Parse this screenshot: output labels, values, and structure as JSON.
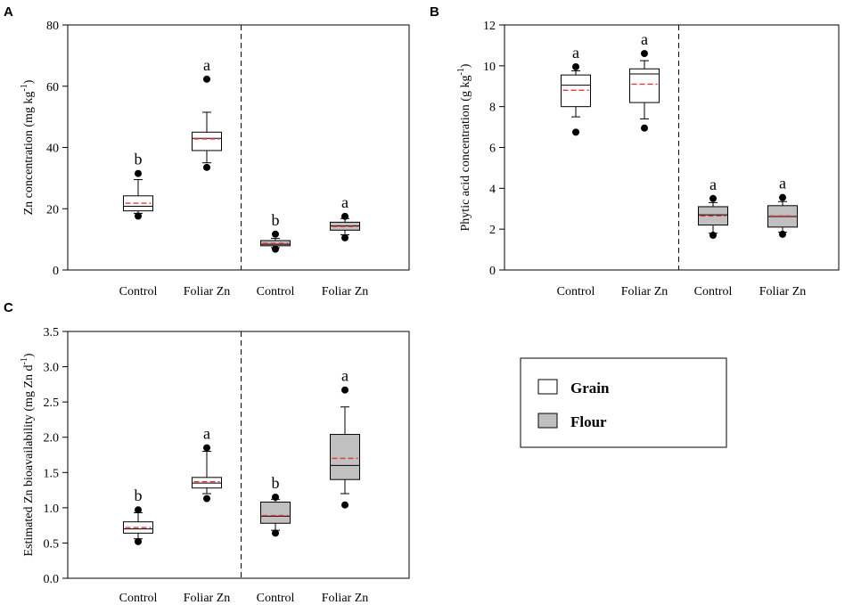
{
  "legend": {
    "items": [
      {
        "label": "Grain",
        "color": "#ffffff"
      },
      {
        "label": "Flour",
        "color": "#c0c0c0"
      }
    ]
  },
  "chart_data": [
    {
      "type": "box",
      "panel": "A",
      "ylabel": "Zn concentration (mg kg",
      "ylabel_sup": "-1",
      "ylabel_close": ")",
      "ylim": [
        0,
        80
      ],
      "yticks": [
        0,
        20,
        40,
        60,
        80
      ],
      "ytick_labels": [
        "0",
        "20",
        "40",
        "60",
        "80"
      ],
      "categories": [
        "Control",
        "Foliar Zn",
        "Control",
        "Foliar Zn"
      ],
      "boxes": [
        {
          "group": "Grain",
          "whisker_low": 18.5,
          "q1": 19.3,
          "median": 20.8,
          "mean": 21.8,
          "q3": 24.2,
          "whisker_high": 29.5,
          "outliers": [
            17.6,
            31.5
          ],
          "sig": "b"
        },
        {
          "group": "Grain",
          "whisker_low": 35,
          "q1": 39,
          "median": 43,
          "mean": 42.8,
          "q3": 45,
          "whisker_high": 51.5,
          "outliers": [
            33.5,
            62.3
          ],
          "sig": "a"
        },
        {
          "group": "Flour",
          "whisker_low": 7.3,
          "q1": 7.9,
          "median": 8.4,
          "mean": 8.7,
          "q3": 9.6,
          "whisker_high": 10.3,
          "outliers": [
            6.8,
            11.7
          ],
          "sig": "b"
        },
        {
          "group": "Flour",
          "whisker_low": 11.5,
          "q1": 13,
          "median": 14.4,
          "mean": 14.2,
          "q3": 15.6,
          "whisker_high": 16.8,
          "outliers": [
            10.5,
            17.5
          ],
          "sig": "a"
        }
      ]
    },
    {
      "type": "box",
      "panel": "B",
      "ylabel": "Phytic acid concentration (g kg",
      "ylabel_sup": "-1",
      "ylabel_close": ")",
      "ylim": [
        0,
        12
      ],
      "yticks": [
        0,
        2,
        4,
        6,
        8,
        10,
        12
      ],
      "ytick_labels": [
        "0",
        "2",
        "4",
        "6",
        "8",
        "10",
        "12"
      ],
      "categories": [
        "Control",
        "Foliar Zn",
        "Control",
        "Foliar Zn"
      ],
      "boxes": [
        {
          "group": "Grain",
          "whisker_low": 7.5,
          "q1": 8,
          "median": 9.05,
          "mean": 8.8,
          "q3": 9.55,
          "whisker_high": 9.75,
          "outliers": [
            6.75,
            9.95
          ],
          "sig": "a"
        },
        {
          "group": "Grain",
          "whisker_low": 7.4,
          "q1": 8.2,
          "median": 9.6,
          "mean": 9.1,
          "q3": 9.85,
          "whisker_high": 10.25,
          "outliers": [
            6.95,
            10.6
          ],
          "sig": "a"
        },
        {
          "group": "Flour",
          "whisker_low": 1.8,
          "q1": 2.2,
          "median": 2.7,
          "mean": 2.65,
          "q3": 3.1,
          "whisker_high": 3.3,
          "outliers": [
            1.7,
            3.5
          ],
          "sig": "a"
        },
        {
          "group": "Flour",
          "whisker_low": 1.85,
          "q1": 2.1,
          "median": 2.62,
          "mean": 2.65,
          "q3": 3.15,
          "whisker_high": 3.35,
          "outliers": [
            1.75,
            3.55
          ],
          "sig": "a"
        }
      ]
    },
    {
      "type": "box",
      "panel": "C",
      "ylabel": "Estimated Zn bioavailability (mg Zn d",
      "ylabel_sup": "-1",
      "ylabel_close": ")",
      "ylim": [
        0,
        3.5
      ],
      "yticks": [
        0,
        0.5,
        1,
        1.5,
        2,
        2.5,
        3,
        3.5
      ],
      "ytick_labels": [
        "0.0",
        "0.5",
        "1.0",
        "1.5",
        "2.0",
        "2.5",
        "3.0",
        "3.5"
      ],
      "categories": [
        "Control",
        "Foliar Zn",
        "Control",
        "Foliar Zn"
      ],
      "boxes": [
        {
          "group": "Grain",
          "whisker_low": 0.56,
          "q1": 0.64,
          "median": 0.7,
          "mean": 0.72,
          "q3": 0.8,
          "whisker_high": 0.93,
          "outliers": [
            0.52,
            0.97
          ],
          "sig": "b"
        },
        {
          "group": "Grain",
          "whisker_low": 1.2,
          "q1": 1.28,
          "median": 1.35,
          "mean": 1.37,
          "q3": 1.43,
          "whisker_high": 1.8,
          "outliers": [
            1.13,
            1.85
          ],
          "sig": "a"
        },
        {
          "group": "Flour",
          "whisker_low": 0.68,
          "q1": 0.78,
          "median": 0.88,
          "mean": 0.89,
          "q3": 1.08,
          "whisker_high": 1.12,
          "outliers": [
            0.64,
            1.15
          ],
          "sig": "b"
        },
        {
          "group": "Flour",
          "whisker_low": 1.2,
          "q1": 1.4,
          "median": 1.6,
          "mean": 1.7,
          "q3": 2.04,
          "whisker_high": 2.43,
          "outliers": [
            1.04,
            2.67
          ],
          "sig": "a"
        }
      ]
    }
  ]
}
